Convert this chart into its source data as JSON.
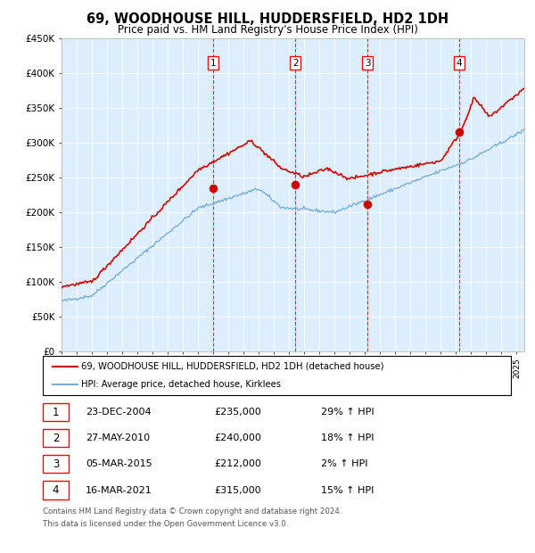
{
  "title": "69, WOODHOUSE HILL, HUDDERSFIELD, HD2 1DH",
  "subtitle": "Price paid vs. HM Land Registry's House Price Index (HPI)",
  "legend_line1": "69, WOODHOUSE HILL, HUDDERSFIELD, HD2 1DH (detached house)",
  "legend_line2": "HPI: Average price, detached house, Kirklees",
  "footer_line1": "Contains HM Land Registry data © Crown copyright and database right 2024.",
  "footer_line2": "This data is licensed under the Open Government Licence v3.0.",
  "hpi_color": "#7bafd4",
  "price_color": "#cc0000",
  "dot_color": "#cc0000",
  "background_color": "#ddeeff",
  "ylim": [
    0,
    450000
  ],
  "yticks": [
    0,
    50000,
    100000,
    150000,
    200000,
    250000,
    300000,
    350000,
    400000,
    450000
  ],
  "ytick_labels": [
    "£0",
    "£50K",
    "£100K",
    "£150K",
    "£200K",
    "£250K",
    "£300K",
    "£350K",
    "£400K",
    "£450K"
  ],
  "sales": [
    {
      "num": 1,
      "date": "23-DEC-2004",
      "price": 235000,
      "pct": "29%",
      "x_year": 2004.97
    },
    {
      "num": 2,
      "date": "27-MAY-2010",
      "price": 240000,
      "pct": "18%",
      "x_year": 2010.41
    },
    {
      "num": 3,
      "date": "05-MAR-2015",
      "price": 212000,
      "pct": "2%",
      "x_year": 2015.17
    },
    {
      "num": 4,
      "date": "16-MAR-2021",
      "price": 315000,
      "pct": "15%",
      "x_year": 2021.21
    }
  ],
  "xmin": 1995.0,
  "xmax": 2025.5
}
